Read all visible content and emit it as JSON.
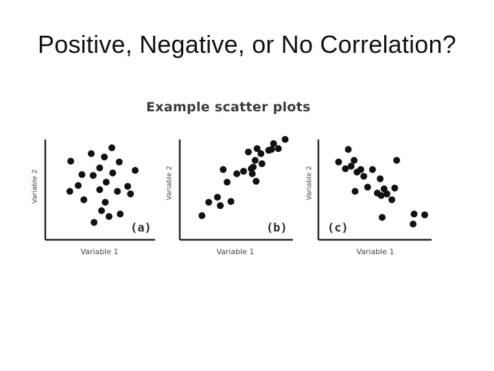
{
  "slide": {
    "title": "Positive, Negative, or No Correlation?"
  },
  "figure": {
    "title": "Example scatter plots"
  },
  "chart_data": [
    {
      "type": "scatter",
      "panel_label": "(a)",
      "xlabel": "Variable 1",
      "ylabel": "Variable 2",
      "xlim": [
        0,
        10
      ],
      "ylim": [
        0,
        10
      ],
      "grid": false,
      "point_color": "#111111",
      "points": [
        [
          1.7,
          7.9
        ],
        [
          3.9,
          8.8
        ],
        [
          6.1,
          9.5
        ],
        [
          5.3,
          8.4
        ],
        [
          6.9,
          7.8
        ],
        [
          2.9,
          6.3
        ],
        [
          4.8,
          7.1
        ],
        [
          6.2,
          6.5
        ],
        [
          8.6,
          6.8
        ],
        [
          4.1,
          6.2
        ],
        [
          2.5,
          5.0
        ],
        [
          5.5,
          5.4
        ],
        [
          7.8,
          4.9
        ],
        [
          1.6,
          4.3
        ],
        [
          4.8,
          4.5
        ],
        [
          6.7,
          4.3
        ],
        [
          8.1,
          4.0
        ],
        [
          3.1,
          3.3
        ],
        [
          5.4,
          3.0
        ],
        [
          5.0,
          2.0
        ],
        [
          7.0,
          1.6
        ],
        [
          5.8,
          1.3
        ],
        [
          4.2,
          0.6
        ]
      ]
    },
    {
      "type": "scatter",
      "panel_label": "(b)",
      "xlabel": "Variable 1",
      "ylabel": "Variable 2",
      "xlim": [
        0,
        10
      ],
      "ylim": [
        0,
        10
      ],
      "grid": false,
      "point_color": "#111111",
      "points": [
        [
          1.3,
          1.4
        ],
        [
          2.0,
          3.0
        ],
        [
          2.9,
          3.6
        ],
        [
          3.2,
          2.6
        ],
        [
          3.9,
          5.4
        ],
        [
          4.3,
          3.1
        ],
        [
          3.5,
          6.9
        ],
        [
          4.9,
          6.4
        ],
        [
          5.6,
          6.7
        ],
        [
          6.4,
          7.0
        ],
        [
          6.8,
          8.0
        ],
        [
          7.4,
          8.8
        ],
        [
          7.5,
          7.6
        ],
        [
          8.2,
          9.2
        ],
        [
          8.5,
          9.3
        ],
        [
          8.7,
          10.0
        ],
        [
          6.1,
          9.0
        ],
        [
          7.0,
          9.4
        ],
        [
          6.9,
          5.5
        ],
        [
          6.5,
          6.4
        ],
        [
          6.6,
          7.2
        ],
        [
          9.2,
          9.4
        ],
        [
          9.9,
          10.5
        ]
      ]
    },
    {
      "type": "scatter",
      "panel_label": "(c)",
      "xlabel": "Variable 1",
      "ylabel": "Variable 2",
      "xlim": [
        0,
        10
      ],
      "ylim": [
        0,
        10
      ],
      "grid": false,
      "point_color": "#111111",
      "points": [
        [
          1.1,
          7.8
        ],
        [
          1.8,
          7.0
        ],
        [
          2.4,
          7.3
        ],
        [
          3.0,
          6.6
        ],
        [
          3.4,
          6.9
        ],
        [
          2.1,
          9.3
        ],
        [
          2.7,
          8.0
        ],
        [
          3.7,
          6.1
        ],
        [
          4.6,
          6.9
        ],
        [
          4.1,
          4.8
        ],
        [
          5.4,
          5.8
        ],
        [
          5.1,
          4.1
        ],
        [
          5.8,
          4.6
        ],
        [
          6.1,
          4.0
        ],
        [
          6.9,
          4.7
        ],
        [
          6.6,
          3.3
        ],
        [
          7.1,
          8.0
        ],
        [
          5.5,
          3.8
        ],
        [
          2.8,
          4.3
        ],
        [
          5.6,
          1.2
        ],
        [
          8.9,
          1.6
        ],
        [
          10.0,
          1.5
        ],
        [
          8.8,
          0.4
        ]
      ]
    }
  ]
}
